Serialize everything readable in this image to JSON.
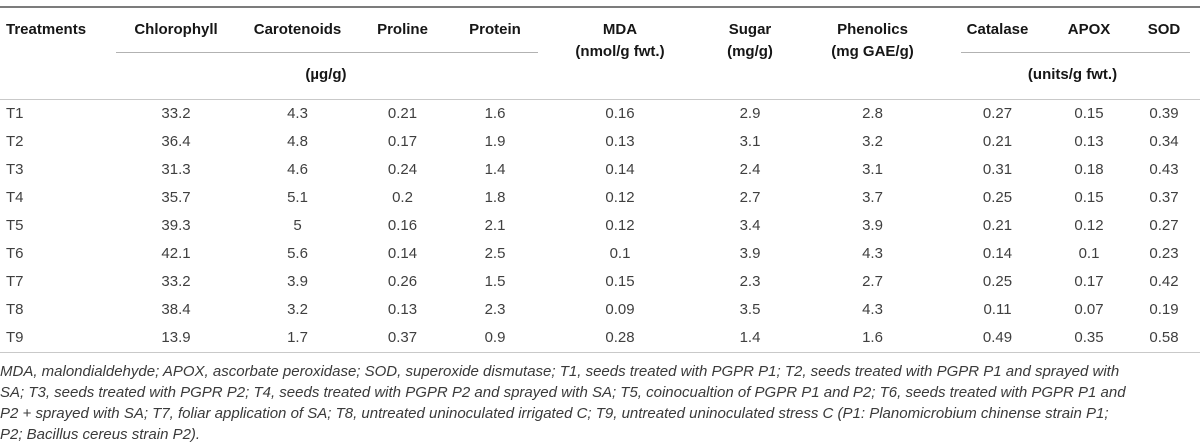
{
  "table": {
    "columns": [
      {
        "label": "Treatments"
      },
      {
        "label": "Chlorophyll"
      },
      {
        "label": "Carotenoids"
      },
      {
        "label": "Proline"
      },
      {
        "label": "Protein"
      },
      {
        "label": "MDA",
        "sublabel": "(nmol/g fwt.)"
      },
      {
        "label": "Sugar",
        "sublabel": "(mg/g)"
      },
      {
        "label": "Phenolics",
        "sublabel": "(mg GAE/g)"
      },
      {
        "label": "Catalase"
      },
      {
        "label": "APOX"
      },
      {
        "label": "SOD"
      }
    ],
    "group_units": [
      {
        "label": "(µg/g)",
        "columns_spanned": [
          "Chlorophyll",
          "Carotenoids",
          "Proline",
          "Protein"
        ]
      },
      {
        "label": "(units/g fwt.)",
        "columns_spanned": [
          "Catalase",
          "APOX",
          "SOD"
        ]
      }
    ],
    "rows": [
      {
        "treatment": "T1",
        "values": [
          "33.2",
          "4.3",
          "0.21",
          "1.6",
          "0.16",
          "2.9",
          "2.8",
          "0.27",
          "0.15",
          "0.39"
        ]
      },
      {
        "treatment": "T2",
        "values": [
          "36.4",
          "4.8",
          "0.17",
          "1.9",
          "0.13",
          "3.1",
          "3.2",
          "0.21",
          "0.13",
          "0.34"
        ]
      },
      {
        "treatment": "T3",
        "values": [
          "31.3",
          "4.6",
          "0.24",
          "1.4",
          "0.14",
          "2.4",
          "3.1",
          "0.31",
          "0.18",
          "0.43"
        ]
      },
      {
        "treatment": "T4",
        "values": [
          "35.7",
          "5.1",
          "0.2",
          "1.8",
          "0.12",
          "2.7",
          "3.7",
          "0.25",
          "0.15",
          "0.37"
        ]
      },
      {
        "treatment": "T5",
        "values": [
          "39.3",
          "5",
          "0.16",
          "2.1",
          "0.12",
          "3.4",
          "3.9",
          "0.21",
          "0.12",
          "0.27"
        ]
      },
      {
        "treatment": "T6",
        "values": [
          "42.1",
          "5.6",
          "0.14",
          "2.5",
          "0.1",
          "3.9",
          "4.3",
          "0.14",
          "0.1",
          "0.23"
        ]
      },
      {
        "treatment": "T7",
        "values": [
          "33.2",
          "3.9",
          "0.26",
          "1.5",
          "0.15",
          "2.3",
          "2.7",
          "0.25",
          "0.17",
          "0.42"
        ]
      },
      {
        "treatment": "T8",
        "values": [
          "38.4",
          "3.2",
          "0.13",
          "2.3",
          "0.09",
          "3.5",
          "4.3",
          "0.11",
          "0.07",
          "0.19"
        ]
      },
      {
        "treatment": "T9",
        "values": [
          "13.9",
          "1.7",
          "0.37",
          "0.9",
          "0.28",
          "1.4",
          "1.6",
          "0.49",
          "0.35",
          "0.58"
        ]
      }
    ]
  },
  "footnote": {
    "lines": [
      "MDA, malondialdehyde; APOX, ascorbate peroxidase; SOD, superoxide dismutase; T1, seeds treated with PGPR P1; T2, seeds treated with PGPR P1 and sprayed with",
      "SA; T3, seeds treated with PGPR P2; T4, seeds treated with PGPR P2 and sprayed with SA; T5, coinocualtion of PGPR P1 and P2; T6, seeds treated with PGPR P1 and",
      "P2 + sprayed with SA; T7, foliar application of SA; T8, untreated uninoculated irrigated C; T9, untreated uninoculated stress C (P1: Planomicrobium chinense strain P1;",
      "P2; Bacillus cereus strain P2)."
    ]
  },
  "colors": {
    "background": "#ffffff",
    "top_rule": "#7c7c7c",
    "divider": "#c9c9c9",
    "group_rule": "#b2b2b2",
    "header_text": "#161616",
    "body_text": "#3f3f3f",
    "footnote_text": "#3a3a3a"
  }
}
